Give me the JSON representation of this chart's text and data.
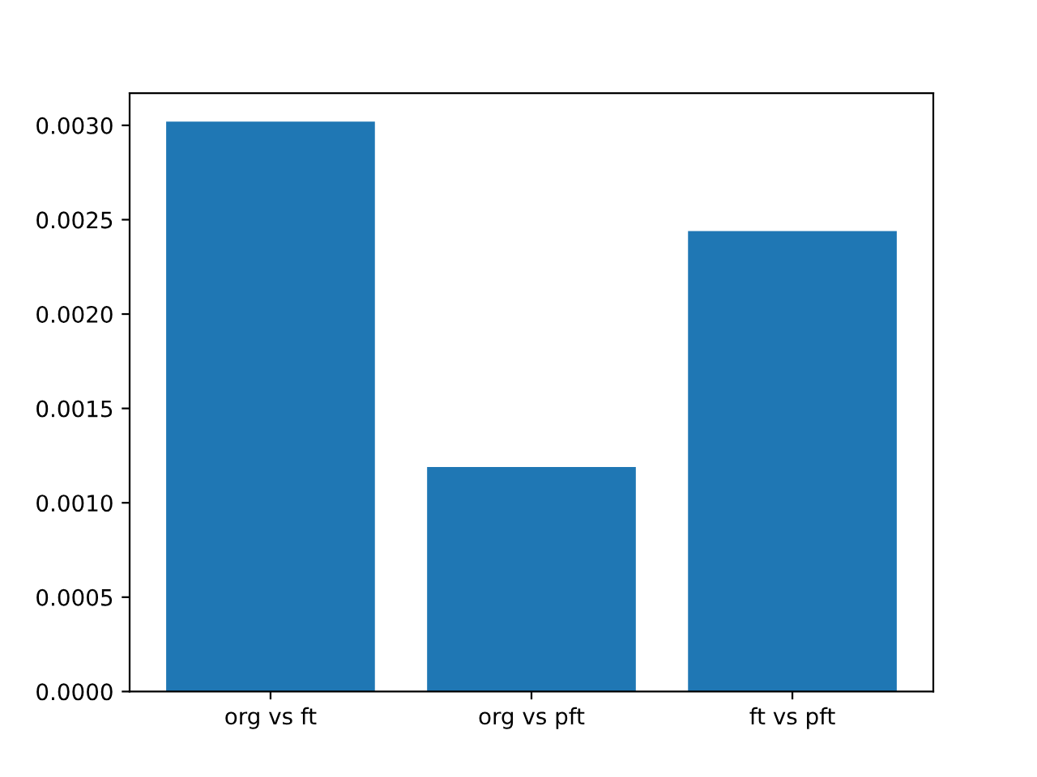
{
  "chart_data": {
    "type": "bar",
    "categories": [
      "org vs ft",
      "org vs pft",
      "ft vs pft"
    ],
    "values": [
      0.00302,
      0.00119,
      0.00244
    ],
    "color": "#1f77b4",
    "ylim": [
      0,
      0.00317
    ],
    "yticks": [
      {
        "value": 0,
        "label": "0.0000"
      },
      {
        "value": 0.0005,
        "label": "0.0005"
      },
      {
        "value": 0.001,
        "label": "0.0010"
      },
      {
        "value": 0.0015,
        "label": "0.0015"
      },
      {
        "value": 0.002,
        "label": "0.0020"
      },
      {
        "value": 0.0025,
        "label": "0.0025"
      },
      {
        "value": 0.003,
        "label": "0.0030"
      }
    ],
    "grid": false
  }
}
